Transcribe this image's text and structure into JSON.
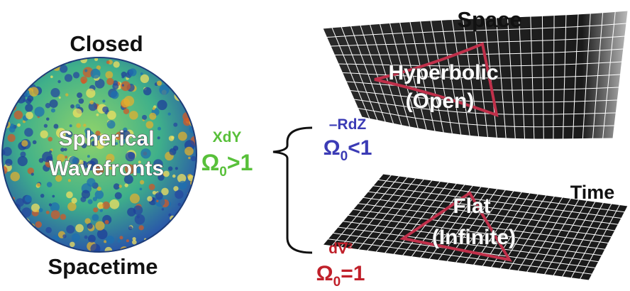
{
  "sphere": {
    "top_label": "Closed",
    "center_lines": [
      "Spherical",
      "Wavefronts"
    ],
    "bottom_label": "Spacetime"
  },
  "branches": {
    "root": {
      "label": "XdY",
      "omega": {
        "symbol": "Ω",
        "subscript": "0",
        "relation": ">1"
      }
    },
    "upper": {
      "label": "–RdZ",
      "omega": {
        "symbol": "Ω",
        "subscript": "0",
        "relation": "<1"
      }
    },
    "lower": {
      "label": "d∇²",
      "omega": {
        "symbol": "Ω",
        "subscript": "0",
        "relation": "=1"
      }
    }
  },
  "surfaces": {
    "hyperbolic": {
      "corner_label": "Space",
      "lines": [
        "Hyperbolic",
        "(Open)"
      ]
    },
    "flat": {
      "corner_label": "Time",
      "lines": [
        "Flat",
        "(Infinite)"
      ]
    }
  }
}
